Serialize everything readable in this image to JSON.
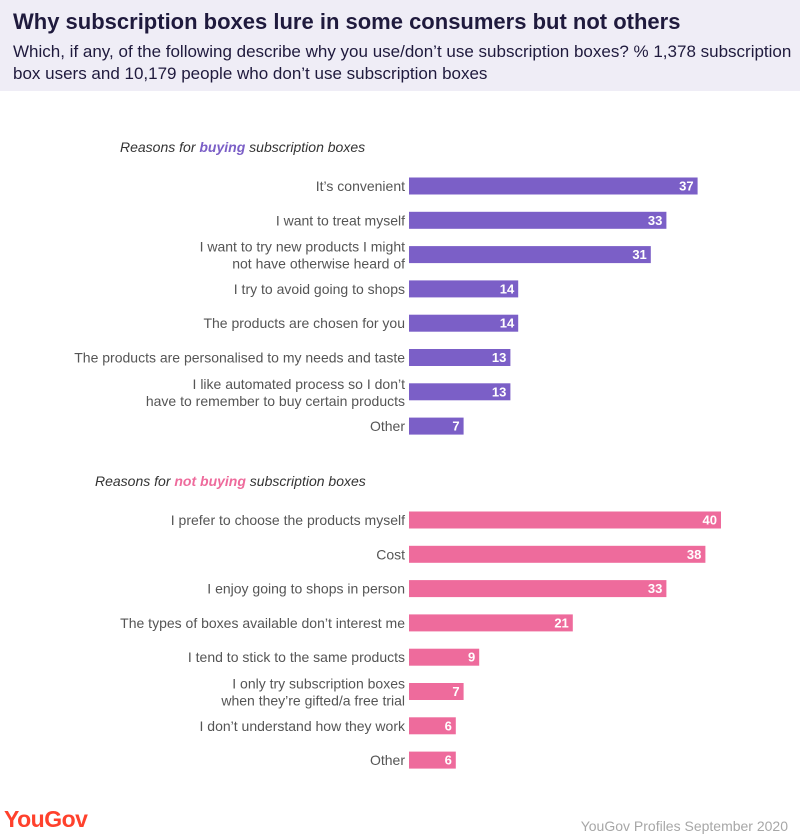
{
  "header": {
    "title": "Why subscription boxes lure in some consumers but not others",
    "subtitle": "Which, if any, of the following describe why you use/don’t use subscription boxes? % 1,378 subscription box users and 10,179 people who don’t use subscription boxes"
  },
  "sections": [
    {
      "prefix": "Reasons for ",
      "highlight": "buying",
      "suffix": " subscription boxes",
      "color": "#7b5fc7"
    },
    {
      "prefix": "Reasons for ",
      "highlight": "not buying",
      "suffix": " subscription boxes",
      "color": "#ee6b9c"
    }
  ],
  "footer": {
    "logo": "YouGov",
    "source": "YouGov Profiles September 2020"
  },
  "chart_data": [
    {
      "type": "bar",
      "orientation": "horizontal",
      "title": "Reasons for buying subscription boxes",
      "color": "#7b5fc7",
      "categories": [
        "It’s convenient",
        "I want to treat myself",
        "I want to try new products I might not have otherwise heard of",
        "I try to avoid going to shops",
        "The products are chosen for you",
        "The products are personalised to my needs and taste",
        "I like automated process so I don’t have to remember to buy certain products",
        "Other"
      ],
      "values": [
        37,
        33,
        31,
        14,
        14,
        13,
        13,
        7
      ]
    },
    {
      "type": "bar",
      "orientation": "horizontal",
      "title": "Reasons for not buying subscription boxes",
      "color": "#ee6b9c",
      "categories": [
        "I prefer to choose the products myself",
        "Cost",
        "I enjoy going to shops in person",
        "The types of boxes available don’t interest me",
        "I tend to stick to the same products",
        "I only try subscription boxes when they’re gifted/a free trial",
        "I don’t understand how they work",
        "Other"
      ],
      "values": [
        40,
        38,
        33,
        21,
        9,
        7,
        6,
        6
      ]
    }
  ]
}
